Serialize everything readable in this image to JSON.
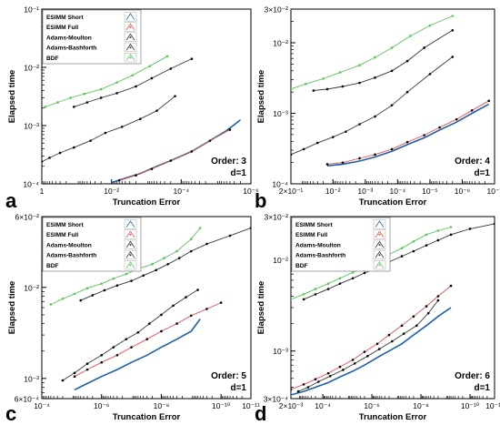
{
  "figure": {
    "x_axis_label": "Truncation Error",
    "y_axis_label": "Elapsed time"
  },
  "colors": {
    "esimm_short": "#1f5fa8",
    "esimm_full": "#e0504a",
    "adams_moulton": "#3a3a3a",
    "adams_bashforth": "#333333",
    "bdf": "#5cc45c",
    "axis": "#000000",
    "legend_border": "#666666"
  },
  "chart_data": [
    {
      "type": "line",
      "panel_label": "a",
      "title": "Order: 3",
      "subtitle": "d=1",
      "xlabel": "Truncation Error",
      "ylabel": "Elapsed time",
      "x_scale": "log-reversed",
      "y_scale": "log",
      "xlim": [
        1,
        1e-06
      ],
      "ylim": [
        0.0001,
        0.1
      ],
      "x_ticks": [
        1,
        0.01,
        0.0001,
        1e-06
      ],
      "x_tick_labels": [
        "1",
        "10⁻²",
        "10⁻⁴",
        "10⁻⁶"
      ],
      "y_ticks": [
        0.0001,
        0.001,
        0.01,
        0.1
      ],
      "y_tick_labels": [
        "10⁻⁴",
        "10⁻³",
        "10⁻²",
        "10⁻¹"
      ],
      "legend": {
        "show": true,
        "position": "top-left",
        "entries": [
          "ESIMM Short",
          "ESIMM Full",
          "Adams-Moulton",
          "Adams-Bashforth",
          "BDF"
        ]
      },
      "series": [
        {
          "name": "ESIMM Short",
          "x": [
            0.01,
            0.004,
            0.0015,
            0.0005,
            0.0002,
            5e-05,
            1.5e-05,
            5e-06,
            2e-06
          ],
          "y": [
            0.000105,
            0.000125,
            0.00015,
            0.0002,
            0.00025,
            0.00036,
            0.00055,
            0.00082,
            0.00125
          ]
        },
        {
          "name": "ESIMM Full",
          "x": [
            0.006,
            0.002,
            0.0007,
            0.0002,
            5e-05,
            1.5e-05,
            4e-06
          ],
          "y": [
            0.000115,
            0.00014,
            0.00018,
            0.00025,
            0.00036,
            0.00055,
            0.00085
          ]
        },
        {
          "name": "Adams-Moulton",
          "x": [
            1,
            0.6,
            0.3,
            0.12,
            0.04,
            0.015,
            0.005,
            0.0015,
            0.0005,
            0.00015
          ],
          "y": [
            0.00024,
            0.00028,
            0.00034,
            0.00042,
            0.00055,
            0.00075,
            0.00095,
            0.0013,
            0.0018,
            0.0032
          ]
        },
        {
          "name": "Adams-Bashforth",
          "x": [
            0.12,
            0.05,
            0.02,
            0.007,
            0.002,
            0.0007,
            0.0002,
            5e-05
          ],
          "y": [
            0.0021,
            0.0025,
            0.003,
            0.0036,
            0.0047,
            0.0065,
            0.0095,
            0.014
          ]
        },
        {
          "name": "BDF",
          "x": [
            0.8,
            0.35,
            0.15,
            0.06,
            0.02,
            0.007,
            0.0025,
            0.0008,
            0.00025
          ],
          "y": [
            0.0021,
            0.0025,
            0.003,
            0.0035,
            0.0042,
            0.0055,
            0.0073,
            0.0105,
            0.0155
          ]
        }
      ]
    },
    {
      "type": "line",
      "panel_label": "b",
      "title": "Order: 4",
      "subtitle": "d=1",
      "xlabel": "Truncation Error",
      "ylabel": "Elapsed time",
      "x_scale": "log-reversed",
      "y_scale": "log",
      "xlim": [
        0.2,
        1e-07
      ],
      "ylim": [
        0.0001,
        0.03
      ],
      "x_ticks": [
        0.2,
        0.01,
        0.001,
        0.0001,
        1e-05,
        1e-06,
        1e-07
      ],
      "x_tick_labels": [
        "2×10⁻¹",
        "10⁻²",
        "10⁻³",
        "10⁻⁴",
        "10⁻⁵",
        "10⁻⁶",
        "10⁻⁷"
      ],
      "y_ticks": [
        0.0001,
        0.001,
        0.01,
        0.03
      ],
      "y_tick_labels": [
        "10⁻⁴",
        "10⁻³",
        "10⁻²",
        "3×10⁻²"
      ],
      "legend": {
        "show": false
      },
      "series": [
        {
          "name": "ESIMM Short",
          "x": [
            0.015,
            0.005,
            0.0015,
            0.0005,
            0.00015,
            5e-05,
            1.5e-05,
            5e-06,
            1.5e-06,
            5e-07,
            1.5e-07
          ],
          "y": [
            0.00018,
            0.00019,
            0.00021,
            0.00024,
            0.00029,
            0.00036,
            0.00045,
            0.00058,
            0.00075,
            0.001,
            0.00135
          ]
        },
        {
          "name": "ESIMM Full",
          "x": [
            0.015,
            0.005,
            0.0015,
            0.0005,
            0.00015,
            5e-05,
            1.5e-05,
            5e-06,
            1.5e-06,
            5e-07,
            1.5e-07
          ],
          "y": [
            0.00019,
            0.0002,
            0.00023,
            0.00026,
            0.00031,
            0.00039,
            0.00049,
            0.00063,
            0.00082,
            0.0011,
            0.0015
          ]
        },
        {
          "name": "Adams-Moulton",
          "x": [
            0.2,
            0.08,
            0.03,
            0.01,
            0.004,
            0.0015,
            0.0005,
            0.00015,
            5e-05,
            1e-05,
            2e-06
          ],
          "y": [
            0.00026,
            0.00031,
            0.00038,
            0.00046,
            0.00055,
            0.0007,
            0.0009,
            0.0013,
            0.002,
            0.0036,
            0.0063
          ]
        },
        {
          "name": "Adams-Bashforth",
          "x": [
            0.04,
            0.015,
            0.005,
            0.0015,
            0.0005,
            0.00015,
            5e-05,
            1.5e-05,
            2e-06
          ],
          "y": [
            0.0021,
            0.0022,
            0.0024,
            0.0027,
            0.0032,
            0.004,
            0.0055,
            0.0085,
            0.015
          ]
        },
        {
          "name": "BDF",
          "x": [
            0.2,
            0.07,
            0.02,
            0.006,
            0.0015,
            0.0005,
            0.00015,
            4e-05,
            1e-05,
            2e-06
          ],
          "y": [
            0.0022,
            0.0026,
            0.0031,
            0.0038,
            0.0048,
            0.0062,
            0.0085,
            0.0125,
            0.0175,
            0.024
          ]
        }
      ]
    },
    {
      "type": "line",
      "panel_label": "c",
      "title": "Order: 5",
      "subtitle": "d=1",
      "xlabel": "Truncation Error",
      "ylabel": "Elapsed time",
      "x_scale": "log-reversed",
      "y_scale": "log",
      "xlim": [
        0.0001,
        1e-11
      ],
      "ylim": [
        0.0006,
        0.06
      ],
      "x_ticks": [
        0.0001,
        1e-06,
        1e-08,
        1e-10,
        1e-11
      ],
      "x_tick_labels": [
        "10⁻⁴",
        "10⁻⁶",
        "10⁻⁸",
        "10⁻¹⁰",
        "10⁻¹¹"
      ],
      "y_ticks": [
        0.0006,
        0.001,
        0.01,
        0.06
      ],
      "y_tick_labels": [
        "6×10⁻⁴",
        "10⁻³",
        "10⁻²",
        "6×10⁻²"
      ],
      "legend": {
        "show": true,
        "position": "top-left",
        "entries": [
          "ESIMM Short",
          "ESIMM Full",
          "Adams-Moulton",
          "Adams-Bashforth",
          "BDF"
        ]
      },
      "series": [
        {
          "name": "ESIMM Short",
          "x": [
            8e-06,
            3e-06,
            1e-06,
            3e-07,
            1e-07,
            3e-08,
            1e-08,
            3e-09,
            1e-09,
            5e-10
          ],
          "y": [
            0.00075,
            0.00088,
            0.00105,
            0.00125,
            0.0015,
            0.0018,
            0.0022,
            0.0027,
            0.0033,
            0.0045
          ]
        },
        {
          "name": "ESIMM Full",
          "x": [
            8e-06,
            3e-06,
            1e-06,
            3e-07,
            1e-07,
            3e-08,
            1e-08,
            3e-09,
            1e-09,
            3e-10,
            1e-10
          ],
          "y": [
            0.00105,
            0.00125,
            0.0015,
            0.0018,
            0.0022,
            0.0027,
            0.0033,
            0.004,
            0.0049,
            0.0058,
            0.0068
          ]
        },
        {
          "name": "Adams-Moulton",
          "x": [
            2e-05,
            8e-06,
            3e-06,
            1e-06,
            4e-07,
            1.5e-07,
            6e-08,
            2.5e-08,
            1e-08,
            4e-09,
            1.5e-09,
            6e-10
          ],
          "y": [
            0.00095,
            0.00115,
            0.00145,
            0.0018,
            0.0022,
            0.0027,
            0.0032,
            0.004,
            0.005,
            0.0063,
            0.0078,
            0.0094
          ]
        },
        {
          "name": "Adams-Bashforth",
          "x": [
            5e-06,
            2e-06,
            8e-07,
            3e-07,
            1e-07,
            4e-08,
            1.5e-08,
            6e-09,
            2.5e-09,
            1e-09,
            3e-10,
            5e-11,
            1e-11
          ],
          "y": [
            0.0072,
            0.0082,
            0.0093,
            0.0105,
            0.0118,
            0.0135,
            0.0155,
            0.018,
            0.021,
            0.025,
            0.03,
            0.037,
            0.045
          ]
        },
        {
          "name": "BDF",
          "x": [
            5e-05,
            2e-05,
            8e-06,
            3e-06,
            1e-06,
            4e-07,
            1.5e-07,
            6e-08,
            2e-08,
            8e-09,
            3e-09,
            1e-09,
            5e-10
          ],
          "y": [
            0.0065,
            0.0075,
            0.0085,
            0.0098,
            0.011,
            0.0125,
            0.014,
            0.016,
            0.018,
            0.021,
            0.025,
            0.034,
            0.045
          ]
        }
      ]
    },
    {
      "type": "line",
      "panel_label": "d",
      "title": "Order: 6",
      "subtitle": "d=1",
      "xlabel": "Truncation Error",
      "ylabel": "Elapsed time",
      "x_scale": "log-reversed",
      "y_scale": "log",
      "xlim": [
        0.002,
        1e-11
      ],
      "ylim": [
        0.0003,
        0.03
      ],
      "x_ticks": [
        0.002,
        0.0001,
        1e-06,
        1e-08,
        1e-10,
        1e-11
      ],
      "x_tick_labels": [
        "2×10⁻³",
        "10⁻⁴",
        "10⁻⁶",
        "10⁻⁸",
        "10⁻¹⁰",
        "10⁻¹¹"
      ],
      "y_ticks": [
        0.0003,
        0.001,
        0.01,
        0.03
      ],
      "y_tick_labels": [
        "3×10⁻⁴",
        "10⁻³",
        "10⁻²",
        "3×10⁻²"
      ],
      "legend": {
        "show": true,
        "position": "top-left",
        "entries": [
          "ESIMM Short",
          "ESIMM Full",
          "Adams-Moulton",
          "Adams-Bashforth",
          "BDF"
        ]
      },
      "series": [
        {
          "name": "ESIMM Short",
          "x": [
            0.002,
            0.0006,
            0.0002,
            6e-05,
            2e-05,
            6e-06,
            2e-06,
            6e-07,
            2e-07,
            6e-08,
            2e-08,
            6e-09,
            2e-09,
            6e-10
          ],
          "y": [
            0.00033,
            0.00036,
            0.0004,
            0.00045,
            0.00052,
            0.0006,
            0.0007,
            0.00085,
            0.001,
            0.0012,
            0.0015,
            0.0019,
            0.0024,
            0.003
          ]
        },
        {
          "name": "ESIMM Full",
          "x": [
            0.002,
            0.0006,
            0.0002,
            6e-05,
            2e-05,
            6e-06,
            2e-06,
            6e-07,
            2e-07,
            6e-08,
            2e-08,
            6e-09,
            2e-09,
            6e-10
          ],
          "y": [
            0.00038,
            0.00043,
            0.00049,
            0.00057,
            0.00067,
            0.0008,
            0.00098,
            0.0012,
            0.0015,
            0.0019,
            0.0024,
            0.0031,
            0.004,
            0.0052
          ]
        },
        {
          "name": "Adams-Moulton",
          "x": [
            0.001,
            0.0004,
            0.00015,
            5e-05,
            1.5e-05,
            5e-06,
            1.5e-06,
            5e-07,
            1.5e-07,
            5e-08,
            1.5e-08,
            5e-09,
            2e-09
          ],
          "y": [
            0.00036,
            0.0004,
            0.00046,
            0.00053,
            0.00062,
            0.00073,
            0.00088,
            0.00105,
            0.00128,
            0.00155,
            0.0019,
            0.0026,
            0.0036
          ]
        },
        {
          "name": "Adams-Bashforth",
          "x": [
            0.0006,
            0.0002,
            6e-05,
            2e-05,
            6e-06,
            2e-06,
            6e-07,
            2e-07,
            6e-08,
            2e-08,
            6e-09,
            2e-09,
            6e-10,
            1e-10,
            1e-11
          ],
          "y": [
            0.0037,
            0.0042,
            0.0048,
            0.0055,
            0.0063,
            0.0072,
            0.0083,
            0.0095,
            0.011,
            0.0125,
            0.0145,
            0.0165,
            0.019,
            0.022,
            0.025
          ]
        },
        {
          "name": "BDF",
          "x": [
            0.002,
            0.0006,
            0.0002,
            6e-05,
            2e-05,
            6e-06,
            2e-06,
            6e-07,
            2e-07,
            6e-08,
            2e-08,
            6e-09,
            2e-09,
            6e-10
          ],
          "y": [
            0.0037,
            0.0042,
            0.0048,
            0.0055,
            0.0063,
            0.0073,
            0.0084,
            0.0098,
            0.0115,
            0.0135,
            0.016,
            0.019,
            0.021,
            0.023
          ]
        }
      ]
    }
  ]
}
